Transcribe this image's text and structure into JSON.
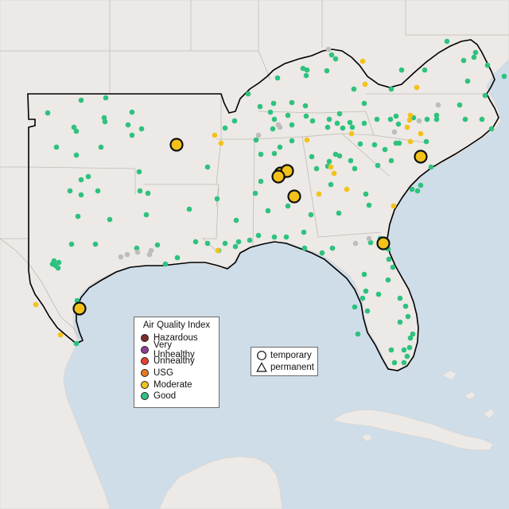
{
  "legend": {
    "title": "Air Quality Index",
    "categories": [
      {
        "label": "Hazardous",
        "color": "#7e2b2b"
      },
      {
        "label": "Very Unhealthy",
        "color": "#8f3f97"
      },
      {
        "label": "Unhealthy",
        "color": "#e8402f"
      },
      {
        "label": "USG",
        "color": "#e97a22"
      },
      {
        "label": "Moderate",
        "color": "#f2c21a"
      },
      {
        "label": "Good",
        "color": "#2ec27e"
      }
    ],
    "shapes": [
      {
        "label": "temporary",
        "icon": "circle-icon"
      },
      {
        "label": "permanent",
        "icon": "triangle-icon"
      }
    ]
  },
  "colors": {
    "water": "#cfdde9",
    "land": "#ece9e6",
    "no_data": "#bdbdbd"
  }
}
